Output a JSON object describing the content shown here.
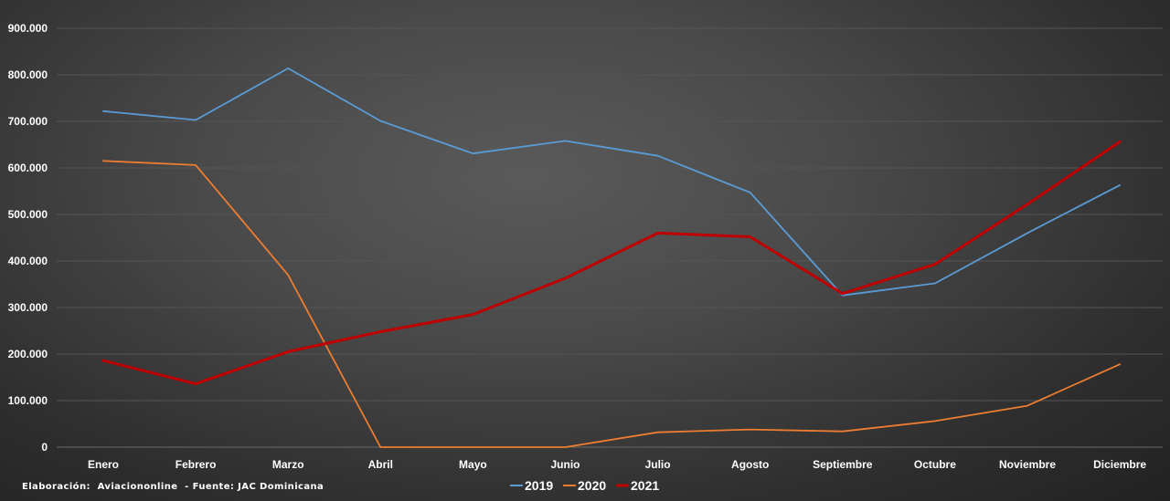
{
  "chart_data": {
    "type": "line",
    "categories": [
      "Enero",
      "Febrero",
      "Marzo",
      "Abril",
      "Mayo",
      "Junio",
      "Julio",
      "Agosto",
      "Septiembre",
      "Octubre",
      "Noviembre",
      "Diciembre"
    ],
    "y_ticks": [
      "0",
      "100.000",
      "200.000",
      "300.000",
      "400.000",
      "500.000",
      "600.000",
      "700.000",
      "800.000",
      "900.000"
    ],
    "ylim": [
      0,
      900000
    ],
    "grid": true,
    "legend_position": "bottom",
    "series": [
      {
        "name": "2019",
        "color": "#5b9bd5",
        "values": [
          722000,
          703000,
          814000,
          701000,
          631000,
          658000,
          626000,
          547000,
          326000,
          352000,
          460000,
          563000
        ]
      },
      {
        "name": "2020",
        "color": "#ed7d31",
        "values": [
          615000,
          606000,
          370000,
          0,
          0,
          0,
          32000,
          38000,
          34000,
          56000,
          89000,
          178000
        ]
      },
      {
        "name": "2021",
        "color": "#c00000",
        "values": [
          186000,
          136000,
          205000,
          248000,
          285000,
          363000,
          460000,
          452000,
          330000,
          393000,
          522000,
          656000
        ]
      }
    ]
  },
  "footer": {
    "credit": "Elaboración:  Aviaciononline",
    "source": "  - Fuente: JAC Dominicana"
  }
}
